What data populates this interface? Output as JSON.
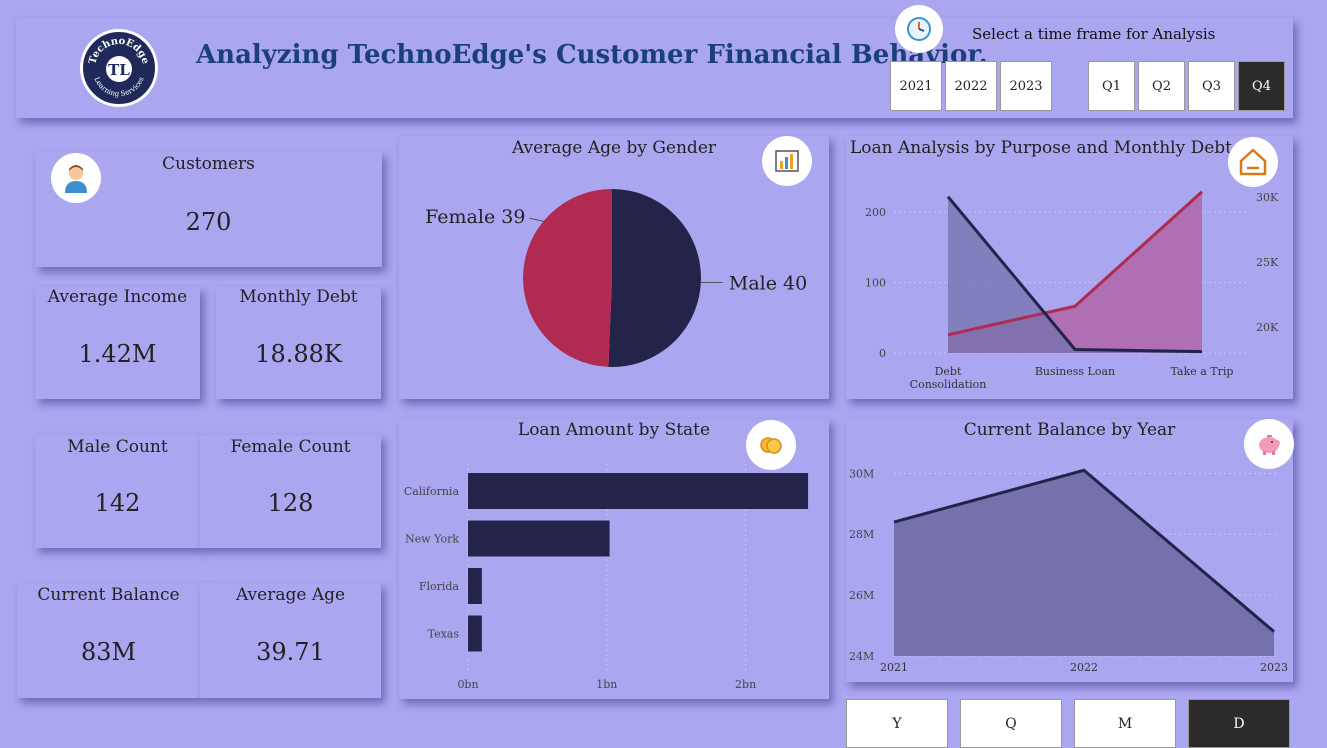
{
  "header": {
    "title": "Analyzing TechnoEdge's Customer Financial Behavior.",
    "logo_text_top": "TechnoEdge",
    "logo_text_bottom": "Learning Services",
    "logo_mark": "TL",
    "timeframe_label": "Select a time frame for Analysis",
    "years": [
      "2021",
      "2022",
      "2023"
    ],
    "quarters": [
      "Q1",
      "Q2",
      "Q3",
      "Q4"
    ],
    "active_quarter": "Q4"
  },
  "kpis": {
    "customers": {
      "label": "Customers",
      "value": "270"
    },
    "average_income": {
      "label": "Average Income",
      "value": "1.42M"
    },
    "monthly_debt": {
      "label": "Monthly Debt",
      "value": "18.88K"
    },
    "male_count": {
      "label": "Male Count",
      "value": "142"
    },
    "female_count": {
      "label": "Female Count",
      "value": "128"
    },
    "current_balance": {
      "label": "Current Balance",
      "value": "83M"
    },
    "average_age": {
      "label": "Average Age",
      "value": "39.71"
    }
  },
  "icons": {
    "customers": "person-icon",
    "avg_age_gender": "bar-chart-icon",
    "loan_analysis": "home-icon",
    "loan_state": "coins-icon",
    "current_balance": "piggy-bank-icon",
    "timeframe": "clock-icon"
  },
  "colors": {
    "background": "#aaa6f0",
    "navy": "#24244a",
    "crimson": "#b02a52",
    "area_navy": "#7471ad",
    "area_pink": "#b165a8"
  },
  "chart_data": [
    {
      "type": "pie",
      "title": "Average Age by Gender",
      "labels": [
        "Female",
        "Male"
      ],
      "values": [
        39,
        40
      ],
      "colors": [
        "#b02a52",
        "#24244a"
      ]
    },
    {
      "type": "area",
      "title": "Loan Analysis by Purpose and Monthly Debt",
      "categories": [
        "Debt Consolidation",
        "Business Loan",
        "Take a Trip"
      ],
      "category_lines": [
        [
          "Debt",
          "Consolidation"
        ],
        [
          "Business Loan"
        ],
        [
          "Take a Trip"
        ]
      ],
      "series": [
        {
          "axis": "left",
          "values": [
            222,
            5,
            2
          ],
          "color": "#24244a"
        },
        {
          "axis": "right",
          "values": [
            19400,
            21600,
            30400
          ],
          "color": "#b02a52"
        }
      ],
      "ylim_left": [
        0,
        240
      ],
      "yticks_left": [
        "0",
        "100",
        "200"
      ],
      "yticks_left_values": [
        0,
        100,
        200
      ],
      "ylim_right": [
        18000,
        31000
      ],
      "yticks_right": [
        "20K",
        "25K",
        "30K"
      ],
      "yticks_right_values": [
        20000,
        25000,
        30000
      ]
    },
    {
      "type": "bar",
      "orientation": "horizontal",
      "title": "Loan Amount by State",
      "categories": [
        "California",
        "New York",
        "Florida",
        "Texas"
      ],
      "values": [
        2.45,
        1.02,
        0.1,
        0.1
      ],
      "xlim": [
        0,
        2.5
      ],
      "xticks": [
        "0bn",
        "1bn",
        "2bn"
      ],
      "xticks_values": [
        0,
        1,
        2
      ]
    },
    {
      "type": "area",
      "title": "Current Balance by Year",
      "categories": [
        "2021",
        "2022",
        "2023"
      ],
      "values": [
        28.4,
        30.1,
        24.8
      ],
      "ylim": [
        24,
        30.8
      ],
      "yticks": [
        "24M",
        "26M",
        "28M",
        "30M"
      ],
      "yticks_values": [
        24,
        26,
        28,
        30
      ]
    }
  ],
  "drill_buttons": [
    "Y",
    "Q",
    "M",
    "D"
  ],
  "active_drill": "D"
}
